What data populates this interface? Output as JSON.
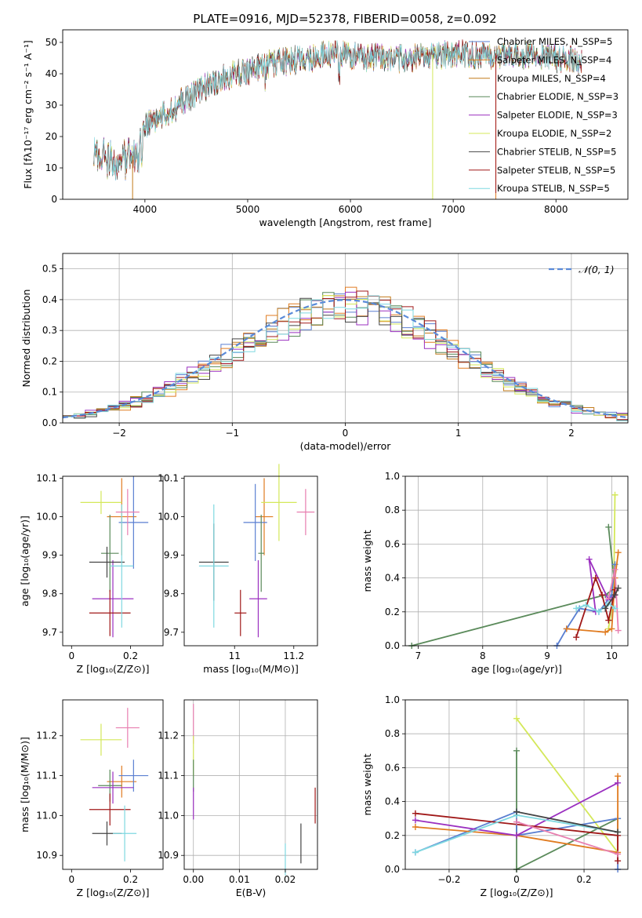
{
  "chart_data": [
    {
      "type": "line",
      "title": "PLATE=0916, MJD=52378, FIBERID=0058, z=0.092",
      "xlabel": "wavelength [Angstrom, rest frame]",
      "ylabel": "Flux [fλ10⁻¹⁷ erg cm⁻² s⁻¹ A⁻¹]",
      "xlim": [
        3200,
        8700
      ],
      "ylim": [
        0,
        54
      ],
      "xticks": [
        4000,
        5000,
        6000,
        7000,
        8000
      ],
      "yticks": [
        0,
        10,
        20,
        30,
        40,
        50
      ],
      "legend_placement": "top-right",
      "series": [
        {
          "name": "Chabrier MILES, N_SSP=5",
          "color": "#5a7fd1"
        },
        {
          "name": "Salpeter MILES, N_SSP=4",
          "color": "#e07b20"
        },
        {
          "name": "Kroupa MILES, N_SSP=4",
          "color": "#c27a1a"
        },
        {
          "name": "Chabrier ELODIE, N_SSP=3",
          "color": "#5a8a5a"
        },
        {
          "name": "Salpeter ELODIE, N_SSP=3",
          "color": "#9b30c0"
        },
        {
          "name": "Kroupa ELODIE, N_SSP=2",
          "color": "#d4e85a"
        },
        {
          "name": "Chabrier STELIB, N_SSP=5",
          "color": "#444444"
        },
        {
          "name": "Salpeter STELIB, N_SSP=5",
          "color": "#a01818"
        },
        {
          "name": "Kroupa STELIB, N_SSP=5",
          "color": "#7fd8e0"
        }
      ],
      "continuum": {
        "x": [
          3500,
          3700,
          3900,
          4000,
          4200,
          4400,
          4600,
          4800,
          5000,
          5200,
          5400,
          5600,
          5800,
          6000,
          6200,
          6400,
          6600,
          6800,
          7000,
          7200,
          7400,
          7600,
          7800,
          8000,
          8200
        ],
        "y": [
          13,
          12,
          14,
          24,
          27,
          32,
          36,
          39,
          41,
          43,
          44,
          45,
          46,
          46,
          45,
          45,
          45,
          46,
          46,
          46,
          46,
          46,
          46,
          45,
          44
        ]
      }
    },
    {
      "type": "bar",
      "xlabel": "(data-model)/error",
      "ylabel": "Normed distribution",
      "xlim": [
        -2.5,
        2.5
      ],
      "ylim": [
        0,
        0.55
      ],
      "xticks": [
        -2,
        -1,
        0,
        1,
        2
      ],
      "yticks": [
        0.0,
        0.1,
        0.2,
        0.3,
        0.4,
        0.5
      ],
      "grid": true,
      "legend_placement": "top-right",
      "reference_label": "𝒩(0, 1)",
      "reference_color": "#5a8ad8",
      "bin_width": 0.1
    },
    {
      "type": "scatter",
      "xlabel": "Z [log₁₀(Z/Z⊙)]",
      "ylabel": "age  [log₁₀(age/yr)]",
      "xlim": [
        -0.03,
        0.31
      ],
      "ylim": [
        9.665,
        10.105
      ],
      "xticks": [
        0.0,
        0.2
      ],
      "yticks": [
        9.7,
        9.8,
        9.9,
        10.0,
        10.1
      ],
      "points": [
        {
          "x": 0.17,
          "y": 10.0,
          "xe": 0.05,
          "ye": 0.1,
          "color": "#e07b20"
        },
        {
          "x": 0.21,
          "y": 9.985,
          "xe": 0.05,
          "ye": 0.12,
          "color": "#5a7fd1"
        },
        {
          "x": 0.1,
          "y": 10.037,
          "xe": 0.07,
          "ye": 0.03,
          "color": "#d4e85a"
        },
        {
          "x": 0.13,
          "y": 9.905,
          "xe": 0.03,
          "ye": 0.1,
          "color": "#5a8a5a"
        },
        {
          "x": 0.14,
          "y": 9.787,
          "xe": 0.07,
          "ye": 0.1,
          "color": "#9b30c0"
        },
        {
          "x": 0.13,
          "y": 9.75,
          "xe": 0.07,
          "ye": 0.06,
          "color": "#a01818"
        },
        {
          "x": 0.12,
          "y": 9.882,
          "xe": 0.06,
          "ye": 0.04,
          "color": "#444444"
        },
        {
          "x": 0.17,
          "y": 9.872,
          "xe": 0.04,
          "ye": 0.16,
          "color": "#7fd8e0"
        },
        {
          "x": 0.19,
          "y": 10.012,
          "xe": 0.04,
          "ye": 0.06,
          "color": "#e87fb0"
        }
      ]
    },
    {
      "type": "scatter",
      "xlabel": "mass [log₁₀(M/M⊙)]",
      "ylabel": "",
      "xlim": [
        10.83,
        11.28
      ],
      "ylim": [
        9.665,
        10.105
      ],
      "xticks": [
        11.0,
        11.2
      ],
      "yticks": [
        9.7,
        9.8,
        9.9,
        10.0,
        10.1
      ],
      "points": [
        {
          "x": 11.1,
          "y": 10.0,
          "xe": 0.03,
          "ye": 0.1,
          "color": "#e07b20"
        },
        {
          "x": 11.07,
          "y": 9.985,
          "xe": 0.04,
          "ye": 0.1,
          "color": "#5a7fd1"
        },
        {
          "x": 11.15,
          "y": 10.037,
          "xe": 0.06,
          "ye": 0.1,
          "color": "#d4e85a"
        },
        {
          "x": 11.09,
          "y": 9.905,
          "xe": 0.01,
          "ye": 0.1,
          "color": "#5a8a5a"
        },
        {
          "x": 11.08,
          "y": 9.787,
          "xe": 0.03,
          "ye": 0.1,
          "color": "#9b30c0"
        },
        {
          "x": 11.02,
          "y": 9.75,
          "xe": 0.02,
          "ye": 0.06,
          "color": "#a01818"
        },
        {
          "x": 10.93,
          "y": 9.882,
          "xe": 0.05,
          "ye": 0.1,
          "color": "#444444"
        },
        {
          "x": 10.93,
          "y": 9.872,
          "xe": 0.05,
          "ye": 0.16,
          "color": "#7fd8e0"
        },
        {
          "x": 11.24,
          "y": 10.012,
          "xe": 0.03,
          "ye": 0.06,
          "color": "#e87fb0"
        }
      ]
    },
    {
      "type": "line",
      "xlabel": "age  [log₁₀(age/yr)]",
      "ylabel": "mass weight",
      "xlim": [
        6.8,
        10.25
      ],
      "ylim": [
        0,
        1.0
      ],
      "xticks": [
        7,
        8,
        9,
        10
      ],
      "yticks": [
        0.0,
        0.2,
        0.4,
        0.6,
        0.8,
        1.0
      ],
      "grid": true,
      "series": [
        {
          "color": "#5a8a5a",
          "x": [
            6.9,
            9.9,
            10.05,
            9.95
          ],
          "y": [
            0.0,
            0.3,
            0.34,
            0.7
          ]
        },
        {
          "color": "#d4e85a",
          "x": [
            10.05,
            10.03,
            9.95
          ],
          "y": [
            0.89,
            0.3,
            0.1
          ]
        },
        {
          "color": "#5a7fd1",
          "x": [
            9.15,
            9.3,
            9.5,
            9.8,
            10.0,
            10.05
          ],
          "y": [
            0.0,
            0.1,
            0.22,
            0.2,
            0.3,
            0.48
          ]
        },
        {
          "color": "#e07b20",
          "x": [
            9.3,
            9.9,
            10.0,
            10.05,
            10.1
          ],
          "y": [
            0.1,
            0.08,
            0.1,
            0.4,
            0.55
          ]
        },
        {
          "color": "#9b30c0",
          "x": [
            9.75,
            9.65,
            9.95,
            10.05
          ],
          "y": [
            0.2,
            0.51,
            0.27,
            0.3
          ]
        },
        {
          "color": "#a01818",
          "x": [
            9.45,
            9.75,
            9.85,
            9.95,
            10.05
          ],
          "y": [
            0.05,
            0.4,
            0.3,
            0.15,
            0.33
          ]
        },
        {
          "color": "#e87fb0",
          "x": [
            9.95,
            10.05,
            10.1
          ],
          "y": [
            0.28,
            0.45,
            0.09
          ]
        },
        {
          "color": "#7fd8e0",
          "x": [
            9.45,
            9.6,
            9.8,
            9.95,
            10.05
          ],
          "y": [
            0.22,
            0.24,
            0.2,
            0.25,
            0.22
          ]
        },
        {
          "color": "#444444",
          "x": [
            9.9,
            10.05,
            10.1
          ],
          "y": [
            0.22,
            0.3,
            0.34
          ]
        }
      ]
    },
    {
      "type": "scatter",
      "xlabel": "Z [log₁₀(Z/Z⊙)]",
      "ylabel": "mass [log₁₀(M/M⊙)]",
      "xlim": [
        -0.03,
        0.31
      ],
      "ylim": [
        10.865,
        11.29
      ],
      "xticks": [
        0.0,
        0.2
      ],
      "yticks": [
        10.9,
        11.0,
        11.1,
        11.2
      ],
      "points": [
        {
          "x": 0.17,
          "y": 11.085,
          "xe": 0.05,
          "ye": 0.04,
          "color": "#e07b20"
        },
        {
          "x": 0.21,
          "y": 11.1,
          "xe": 0.05,
          "ye": 0.04,
          "color": "#5a7fd1"
        },
        {
          "x": 0.1,
          "y": 11.19,
          "xe": 0.07,
          "ye": 0.04,
          "color": "#d4e85a"
        },
        {
          "x": 0.13,
          "y": 11.075,
          "xe": 0.04,
          "ye": 0.04,
          "color": "#5a8a5a"
        },
        {
          "x": 0.14,
          "y": 11.07,
          "xe": 0.07,
          "ye": 0.04,
          "color": "#9b30c0"
        },
        {
          "x": 0.13,
          "y": 11.015,
          "xe": 0.07,
          "ye": 0.04,
          "color": "#a01818"
        },
        {
          "x": 0.12,
          "y": 10.955,
          "xe": 0.05,
          "ye": 0.03,
          "color": "#444444"
        },
        {
          "x": 0.18,
          "y": 10.955,
          "xe": 0.04,
          "ye": 0.07,
          "color": "#7fd8e0"
        },
        {
          "x": 0.19,
          "y": 11.22,
          "xe": 0.04,
          "ye": 0.05,
          "color": "#e87fb0"
        }
      ]
    },
    {
      "type": "scatter",
      "xlabel": "E(B-V)",
      "ylabel": "",
      "xlim": [
        -0.002,
        0.027
      ],
      "ylim": [
        10.865,
        11.29
      ],
      "xticks": [
        0.0,
        0.01,
        0.02
      ],
      "yticks": [
        10.9,
        11.0,
        11.1,
        11.2
      ],
      "xticklabels": [
        "0.00",
        "0.01",
        "0.02"
      ],
      "grid": true,
      "points": [
        {
          "x": 0.0,
          "y": 11.23,
          "ye": 0.05,
          "color": "#e87fb0"
        },
        {
          "x": 0.0,
          "y": 11.15,
          "ye": 0.05,
          "color": "#d4e85a"
        },
        {
          "x": 0.0,
          "y": 11.1,
          "ye": 0.04,
          "color": "#5a8a5a"
        },
        {
          "x": 0.0,
          "y": 11.03,
          "ye": 0.04,
          "color": "#9b30c0"
        },
        {
          "x": 0.02,
          "y": 10.89,
          "ye": 0.04,
          "color": "#7fd8e0"
        },
        {
          "x": 0.0234,
          "y": 10.93,
          "ye": 0.05,
          "color": "#444444"
        },
        {
          "x": 0.0265,
          "y": 11.025,
          "ye": 0.045,
          "color": "#a01818"
        }
      ]
    },
    {
      "type": "line",
      "xlabel": "Z [log₁₀(Z/Z⊙)]",
      "ylabel": "mass weight",
      "xlim": [
        -0.33,
        0.33
      ],
      "ylim": [
        0,
        1.0
      ],
      "xticks": [
        -0.2,
        0.0,
        0.2
      ],
      "yticks": [
        0.0,
        0.2,
        0.4,
        0.6,
        0.8,
        1.0
      ],
      "grid": true,
      "series": [
        {
          "color": "#5a8a5a",
          "x": [
            0.0,
            0.0,
            0.3,
            0.3
          ],
          "y": [
            0.7,
            0.0,
            0.3,
            0.22
          ]
        },
        {
          "color": "#d4e85a",
          "x": [
            0.0,
            0.3
          ],
          "y": [
            0.89,
            0.1
          ]
        },
        {
          "color": "#5a7fd1",
          "x": [
            -0.3,
            0.0,
            0.0,
            0.3,
            0.3
          ],
          "y": [
            0.1,
            0.34,
            0.2,
            0.3,
            0.0
          ]
        },
        {
          "color": "#e07b20",
          "x": [
            -0.3,
            0.0,
            0.3,
            0.3
          ],
          "y": [
            0.25,
            0.2,
            0.1,
            0.55
          ]
        },
        {
          "color": "#9b30c0",
          "x": [
            -0.3,
            0.0,
            0.3
          ],
          "y": [
            0.29,
            0.2,
            0.51
          ]
        },
        {
          "color": "#a01818",
          "x": [
            -0.3,
            0.3,
            0.3
          ],
          "y": [
            0.33,
            0.2,
            0.05
          ]
        },
        {
          "color": "#e87fb0",
          "x": [
            0.0,
            0.3
          ],
          "y": [
            0.28,
            0.09
          ]
        },
        {
          "color": "#7fd8e0",
          "x": [
            -0.3,
            0.0,
            0.3
          ],
          "y": [
            0.1,
            0.32,
            0.22
          ]
        },
        {
          "color": "#444444",
          "x": [
            0.0,
            0.3
          ],
          "y": [
            0.34,
            0.22
          ]
        }
      ]
    }
  ]
}
